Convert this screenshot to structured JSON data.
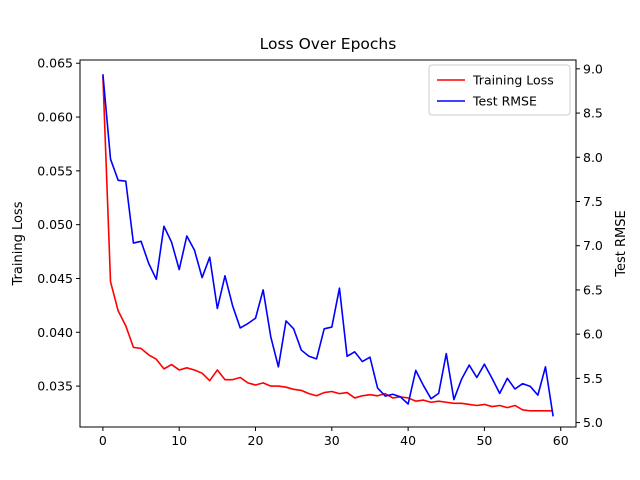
{
  "chart_data": {
    "type": "line",
    "title": "Loss Over Epochs",
    "xlabel": "",
    "ylabel": "Training Loss",
    "y2label": "Test RMSE",
    "xlim": [
      -3,
      62
    ],
    "ylim": [
      0.0312,
      0.0653
    ],
    "y2lim": [
      4.95,
      9.1
    ],
    "xticks": [
      0,
      10,
      20,
      30,
      40,
      50,
      60
    ],
    "yticks": [
      0.035,
      0.04,
      0.045,
      0.05,
      0.055,
      0.06,
      0.065
    ],
    "y2ticks": [
      5.0,
      5.5,
      6.0,
      6.5,
      7.0,
      7.5,
      8.0,
      8.5,
      9.0
    ],
    "legend_position": "top-right",
    "grid": false,
    "x": [
      0,
      1,
      2,
      3,
      4,
      5,
      6,
      7,
      8,
      9,
      10,
      11,
      12,
      13,
      14,
      15,
      16,
      17,
      18,
      19,
      20,
      21,
      22,
      23,
      24,
      25,
      26,
      27,
      28,
      29,
      30,
      31,
      32,
      33,
      34,
      35,
      36,
      37,
      38,
      39,
      40,
      41,
      42,
      43,
      44,
      45,
      46,
      47,
      48,
      49,
      50,
      51,
      52,
      53,
      54,
      55,
      56,
      57,
      58,
      59
    ],
    "series": [
      {
        "name": "Training Loss",
        "axis": "left",
        "color": "#ff0000",
        "values": [
          0.0638,
          0.0447,
          0.042,
          0.0406,
          0.0386,
          0.0385,
          0.0379,
          0.0375,
          0.0366,
          0.037,
          0.0365,
          0.0367,
          0.0365,
          0.0362,
          0.0355,
          0.0365,
          0.0356,
          0.0356,
          0.0358,
          0.0353,
          0.0351,
          0.0353,
          0.035,
          0.035,
          0.0349,
          0.0347,
          0.0346,
          0.0343,
          0.0341,
          0.0344,
          0.0345,
          0.0343,
          0.0344,
          0.0339,
          0.0341,
          0.0342,
          0.0341,
          0.0343,
          0.0339,
          0.034,
          0.0339,
          0.0336,
          0.0337,
          0.0335,
          0.0336,
          0.0335,
          0.0334,
          0.0334,
          0.0333,
          0.0332,
          0.0333,
          0.0331,
          0.0332,
          0.033,
          0.0332,
          0.0328,
          0.0327,
          0.0327,
          0.0327,
          0.0327
        ]
      },
      {
        "name": "Test RMSE",
        "axis": "right",
        "color": "#0000ff",
        "values": [
          8.94,
          7.98,
          7.74,
          7.73,
          7.03,
          7.05,
          6.8,
          6.62,
          7.22,
          7.04,
          6.73,
          7.11,
          6.95,
          6.64,
          6.87,
          6.29,
          6.66,
          6.32,
          6.07,
          6.12,
          6.18,
          6.5,
          5.97,
          5.63,
          6.15,
          6.06,
          5.82,
          5.75,
          5.72,
          6.06,
          6.08,
          6.52,
          5.75,
          5.8,
          5.69,
          5.74,
          5.39,
          5.3,
          5.32,
          5.29,
          5.21,
          5.59,
          5.42,
          5.27,
          5.33,
          5.78,
          5.26,
          5.49,
          5.65,
          5.51,
          5.66,
          5.5,
          5.33,
          5.5,
          5.38,
          5.44,
          5.41,
          5.31,
          5.63,
          5.07
        ]
      }
    ]
  }
}
